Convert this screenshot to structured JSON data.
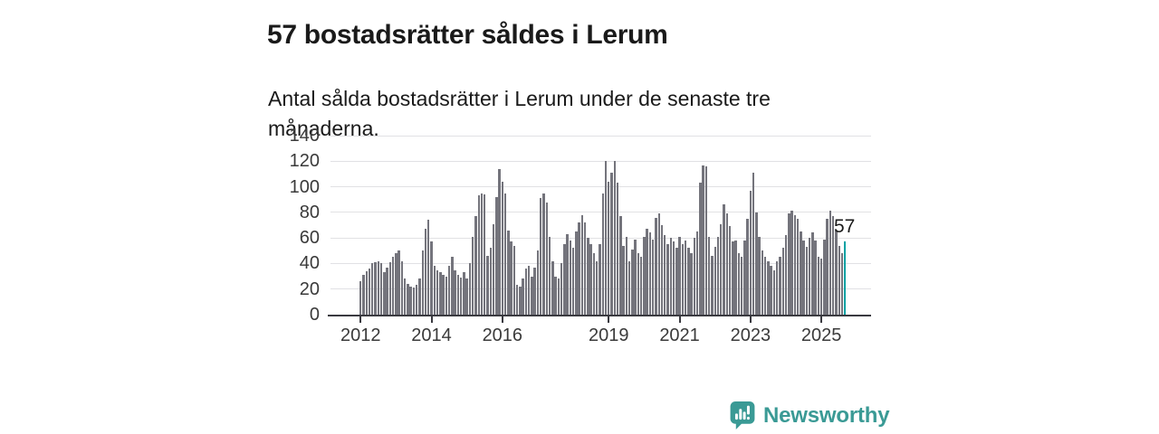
{
  "title": "57 bostadsrätter såldes i Lerum",
  "subtitle": "Antal sålda bostadsrätter i Lerum under de senaste tre månaderna.",
  "annotation_label": "57",
  "branding": {
    "name": "Newsworthy",
    "icon": "bar-chart-speech-bubble-icon",
    "color": "#3a9a95"
  },
  "colors": {
    "bar": "#74747c",
    "highlight_bar": "#00a1a3",
    "gridline": "#e1e1e4",
    "axis": "#3a3a40",
    "text": "#1a1a1a"
  },
  "chart_data": {
    "type": "bar",
    "title": "57 bostadsrätter såldes i Lerum",
    "subtitle": "Antal sålda bostadsrätter i Lerum under de senaste tre månaderna.",
    "ylabel": "",
    "xlabel": "",
    "frequency": "monthly",
    "x_start": "2012-01",
    "x_end": "2025-09",
    "ylim": [
      0,
      140
    ],
    "grid": true,
    "y_ticks": [
      0,
      20,
      40,
      60,
      80,
      100,
      120,
      140
    ],
    "x_tick_labels": [
      "2012",
      "2014",
      "2016",
      "2019",
      "2021",
      "2023",
      "2025"
    ],
    "highlighted_last_value": 57,
    "values": [
      26,
      31,
      34,
      36,
      40,
      41,
      42,
      40,
      33,
      37,
      41,
      45,
      48,
      50,
      42,
      28,
      24,
      22,
      21,
      23,
      28,
      50,
      67,
      74,
      57,
      38,
      35,
      33,
      31,
      30,
      38,
      45,
      35,
      31,
      29,
      33,
      28,
      40,
      61,
      77,
      93,
      95,
      94,
      46,
      52,
      71,
      92,
      114,
      104,
      95,
      66,
      57,
      54,
      23,
      22,
      28,
      36,
      38,
      30,
      37,
      50,
      91,
      95,
      88,
      61,
      42,
      30,
      28,
      40,
      55,
      63,
      58,
      52,
      65,
      72,
      78,
      72,
      60,
      55,
      48,
      42,
      55,
      95,
      120,
      104,
      111,
      120,
      103,
      77,
      54,
      61,
      42,
      51,
      59,
      48,
      45,
      61,
      67,
      64,
      59,
      76,
      79,
      70,
      62,
      55,
      60,
      57,
      52,
      61,
      55,
      58,
      52,
      48,
      60,
      65,
      103,
      117,
      116,
      61,
      46,
      53,
      61,
      71,
      86,
      79,
      69,
      57,
      58,
      48,
      45,
      58,
      75,
      97,
      111,
      80,
      61,
      50,
      45,
      42,
      38,
      35,
      42,
      45,
      52,
      62,
      79,
      81,
      78,
      75,
      65,
      58,
      53,
      60,
      64,
      58,
      45,
      44,
      59,
      75,
      81,
      77,
      66,
      54,
      48,
      57
    ]
  }
}
